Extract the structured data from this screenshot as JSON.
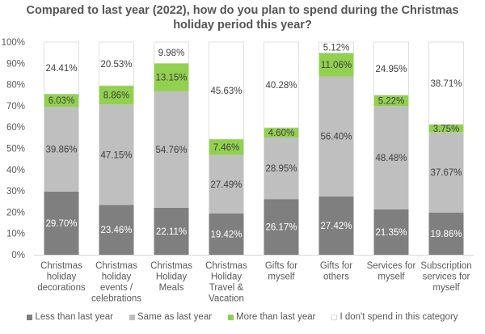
{
  "chart_data": {
    "type": "bar",
    "stacked": true,
    "title": "Compared to last year (2022), how do you plan to spend during the Christmas holiday period this year?",
    "title_lines": [
      "Compared to last year (2022), how do you plan to spend during the Christmas",
      "holiday period this year?"
    ],
    "xlabel": "",
    "ylabel": "",
    "ylim": [
      0,
      100
    ],
    "y_ticks": [
      "0%",
      "10%",
      "20%",
      "30%",
      "40%",
      "50%",
      "60%",
      "70%",
      "80%",
      "90%",
      "100%"
    ],
    "grid": false,
    "legend_position": "bottom",
    "categories": [
      "Christmas holiday decorations",
      "Christmas holiday events / celebrations",
      "Christmas Holiday Meals",
      "Christmas Holiday Travel & Vacation",
      "Gifts for myself",
      "Gifts for others",
      "Services for myself",
      "Subscription services for myself"
    ],
    "category_label_lines": [
      [
        "Christmas",
        "holiday",
        "decorations"
      ],
      [
        "Christmas",
        "holiday",
        "events /",
        "celebrations"
      ],
      [
        "Christmas",
        "Holiday",
        "Meals"
      ],
      [
        "Christmas",
        "Holiday",
        "Travel &",
        "Vacation"
      ],
      [
        "Gifts for",
        "myself"
      ],
      [
        "Gifts for",
        "others"
      ],
      [
        "Services for",
        "myself"
      ],
      [
        "Subscription",
        "services for",
        "myself"
      ]
    ],
    "series": [
      {
        "name": "Less than last year",
        "color": "#7f7f7f",
        "label_color": "#ffffff",
        "values": [
          29.7,
          23.46,
          22.11,
          19.42,
          26.17,
          27.42,
          21.35,
          19.86
        ],
        "labels": [
          "29.70%",
          "23.46%",
          "22.11%",
          "19.42%",
          "26.17%",
          "27.42%",
          "21.35%",
          "19.86%"
        ]
      },
      {
        "name": "Same as last year",
        "color": "#bfbfbf",
        "label_color": "#404040",
        "values": [
          39.86,
          47.15,
          54.76,
          27.49,
          28.95,
          56.4,
          48.48,
          37.67
        ],
        "labels": [
          "39.86%",
          "47.15%",
          "54.76%",
          "27.49%",
          "28.95%",
          "56.40%",
          "48.48%",
          "37.67%"
        ]
      },
      {
        "name": "More than last year",
        "color": "#92d050",
        "label_color": "#404040",
        "values": [
          6.03,
          8.86,
          13.15,
          7.46,
          4.6,
          11.06,
          5.22,
          3.75
        ],
        "labels": [
          "6.03%",
          "8.86%",
          "13.15%",
          "7.46%",
          "4.60%",
          "11.06%",
          "5.22%",
          "3.75%"
        ]
      },
      {
        "name": "I don't spend in this category",
        "color": "#ffffff",
        "label_color": "#404040",
        "values": [
          24.41,
          20.53,
          9.98,
          45.63,
          40.28,
          5.12,
          24.95,
          38.71
        ],
        "labels": [
          "24.41%",
          "20.53%",
          "9.98%",
          "45.63%",
          "40.28%",
          "5.12%",
          "24.95%",
          "38.71%"
        ]
      }
    ]
  }
}
